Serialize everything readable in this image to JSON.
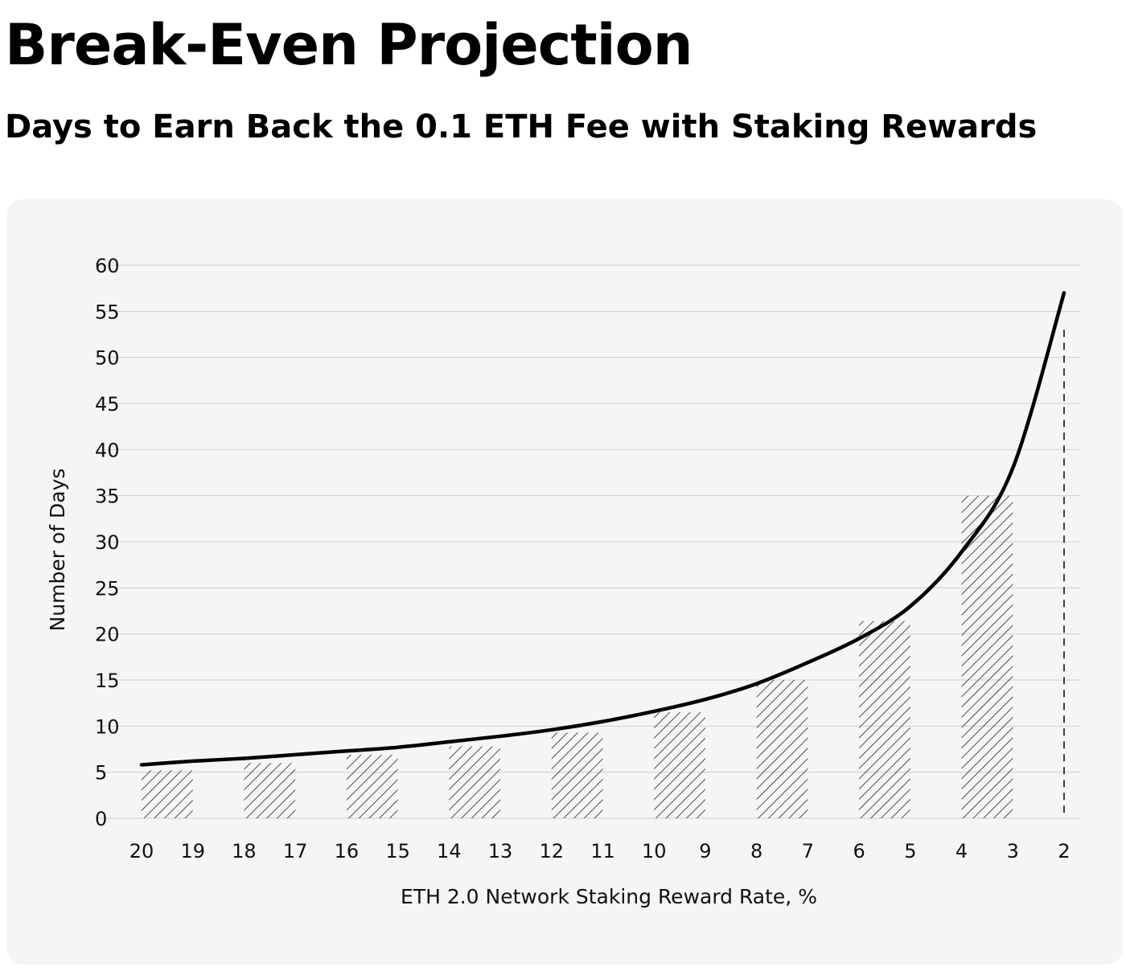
{
  "title": "Break-Even Projection",
  "subtitle": "Days to Earn Back the 0.1 ETH Fee with Staking Rewards",
  "chart_data": {
    "type": "line",
    "xlabel": "ETH 2.0 Network Staking Reward Rate, %",
    "ylabel": "Number of Days",
    "x_ticks": [
      20,
      19,
      18,
      17,
      16,
      15,
      14,
      13,
      12,
      11,
      10,
      9,
      8,
      7,
      6,
      5,
      4,
      3,
      2
    ],
    "y_ticks": [
      0,
      5,
      10,
      15,
      20,
      25,
      30,
      35,
      40,
      45,
      50,
      55,
      60
    ],
    "xlim": [
      20,
      2
    ],
    "ylim": [
      0,
      60
    ],
    "grid": true,
    "line": {
      "x": [
        20,
        19,
        18,
        17,
        16,
        15,
        14,
        13,
        12,
        11,
        10,
        9,
        8,
        7,
        6,
        5,
        4,
        3,
        2
      ],
      "y": [
        5.8,
        6.2,
        6.5,
        6.9,
        7.3,
        7.7,
        8.3,
        8.9,
        9.6,
        10.5,
        11.6,
        12.9,
        14.6,
        16.9,
        19.5,
        23.0,
        28.9,
        38.0,
        57.0
      ]
    },
    "bars": [
      {
        "x_from": 20,
        "x_to": 19,
        "value": 5.2
      },
      {
        "x_from": 18,
        "x_to": 17,
        "value": 6.0
      },
      {
        "x_from": 16,
        "x_to": 15,
        "value": 6.9
      },
      {
        "x_from": 14,
        "x_to": 13,
        "value": 7.8
      },
      {
        "x_from": 12,
        "x_to": 11,
        "value": 9.3
      },
      {
        "x_from": 10,
        "x_to": 9,
        "value": 11.5
      },
      {
        "x_from": 8,
        "x_to": 7,
        "value": 15.0
      },
      {
        "x_from": 6,
        "x_to": 5,
        "value": 21.4
      },
      {
        "x_from": 4,
        "x_to": 3,
        "value": 35.0
      }
    ],
    "marker_line": {
      "x": 2,
      "y_top": 53,
      "style": "dashed"
    },
    "bar_fill": "diagonal-hatch",
    "colors": {
      "line": "#000000",
      "grid": "#cfcfcf",
      "hatch": "#222222",
      "panel": "#f5f5f5"
    }
  }
}
